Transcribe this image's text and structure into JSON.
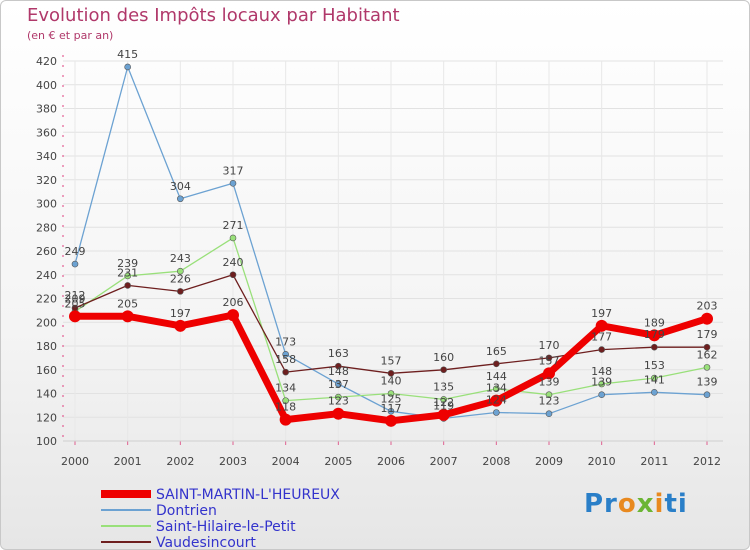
{
  "title": "Evolution des Impôts locaux par Habitant",
  "subtitle": "(en € et par an)",
  "logo": {
    "p": "Pr",
    "o": "o",
    "x": "x",
    "i": "i",
    "t": "ti"
  },
  "chart_data": {
    "type": "line",
    "title": "Evolution des Impôts locaux par Habitant",
    "ylabel": "(en € et par an)",
    "xlabel": "",
    "x": [
      "2000",
      "2001",
      "2002",
      "2003",
      "2004",
      "2005",
      "2006",
      "2007",
      "2008",
      "2009",
      "2010",
      "2011",
      "2012"
    ],
    "ylim": [
      100,
      420
    ],
    "yticks": [
      100,
      120,
      140,
      160,
      180,
      200,
      220,
      240,
      260,
      280,
      300,
      320,
      340,
      360,
      380,
      400,
      420
    ],
    "legend_position": "bottom-left",
    "series": [
      {
        "name": "SAINT-MARTIN-L'HEUREUX",
        "color": "#ee0000",
        "values": [
          205,
          205,
          197,
          206,
          118,
          123,
          117,
          122,
          134,
          157,
          197,
          189,
          203
        ]
      },
      {
        "name": "Dontrien",
        "color": "#6ca2d2",
        "values": [
          249,
          415,
          304,
          317,
          173,
          148,
          125,
          119,
          124,
          123,
          139,
          141,
          139
        ]
      },
      {
        "name": "Saint-Hilaire-le-Petit",
        "color": "#99e07a",
        "values": [
          209,
          239,
          243,
          271,
          134,
          137,
          140,
          135,
          144,
          139,
          148,
          153,
          162
        ]
      },
      {
        "name": "Vaudesincourt",
        "color": "#6e1f1f",
        "values": [
          212,
          231,
          226,
          240,
          158,
          163,
          157,
          160,
          165,
          170,
          177,
          179,
          179
        ]
      }
    ]
  }
}
